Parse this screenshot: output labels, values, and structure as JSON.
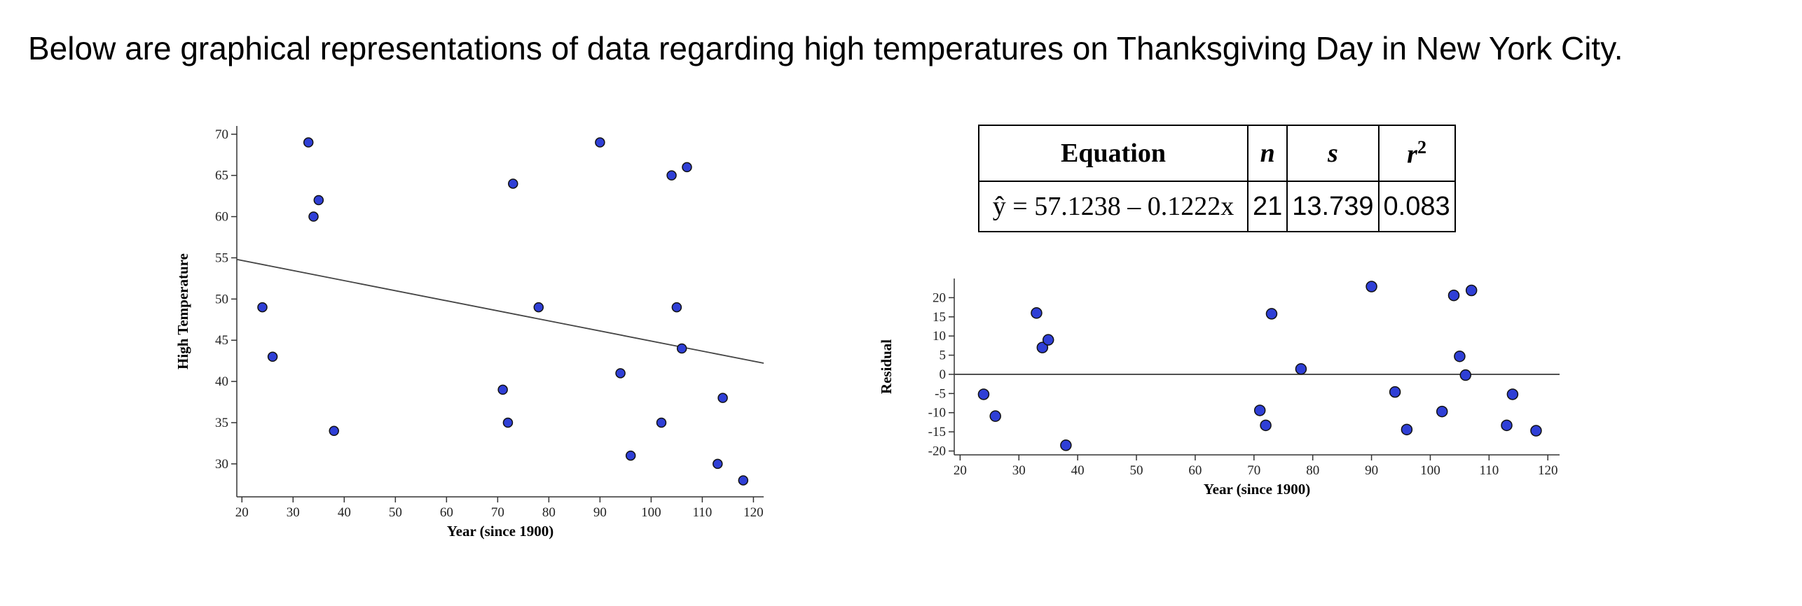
{
  "heading": "Below are graphical representations of data regarding high temperatures on Thanksgiving Day in New York City.",
  "table": {
    "headers": [
      "Equation",
      "n",
      "s",
      "r",
      "2"
    ],
    "equation": "ŷ = 57.1238 – 0.1222x",
    "n": "21",
    "s": "13.739",
    "r2": "0.083"
  },
  "chart_data": [
    {
      "type": "scatter",
      "title": "",
      "xlabel": "Year (since 1900)",
      "ylabel": "High Temperature",
      "xlim": [
        19,
        122
      ],
      "ylim": [
        26,
        71
      ],
      "xticks": [
        20,
        30,
        40,
        50,
        60,
        70,
        80,
        90,
        100,
        110,
        120
      ],
      "yticks": [
        30,
        35,
        40,
        45,
        50,
        55,
        60,
        65,
        70
      ],
      "x": [
        24,
        26,
        33,
        34,
        35,
        38,
        71,
        72,
        73,
        78,
        90,
        94,
        96,
        102,
        104,
        105,
        106,
        107,
        113,
        114,
        118
      ],
      "y": [
        49,
        43,
        69,
        60,
        62,
        34,
        39,
        35,
        64,
        49,
        69,
        41,
        31,
        35,
        65,
        49,
        44,
        66,
        30,
        38,
        28
      ],
      "regression_line": {
        "intercept": 57.1238,
        "slope": -0.1222
      },
      "point_color": "#2f3fd6"
    },
    {
      "type": "scatter",
      "title": "",
      "xlabel": "Year (since 1900)",
      "ylabel": "Residual",
      "xlim": [
        19,
        122
      ],
      "ylim": [
        -21,
        25
      ],
      "xticks": [
        20,
        30,
        40,
        50,
        60,
        70,
        80,
        90,
        100,
        110,
        120
      ],
      "yticks": [
        -20,
        -15,
        -10,
        -5,
        0,
        5,
        10,
        15,
        20
      ],
      "x": [
        24,
        26,
        33,
        34,
        35,
        38,
        71,
        72,
        73,
        78,
        90,
        94,
        96,
        102,
        104,
        105,
        106,
        107,
        113,
        114,
        118
      ],
      "y": [
        -5.2,
        -10.9,
        16,
        7,
        9,
        -18.5,
        -9.4,
        -13.3,
        15.8,
        1.4,
        22.9,
        -4.6,
        -14.4,
        -9.7,
        20.6,
        4.7,
        -0.2,
        21.9,
        -13.3,
        -5.2,
        -14.7
      ],
      "reference_line": 0,
      "point_color": "#2f3fd6"
    }
  ]
}
